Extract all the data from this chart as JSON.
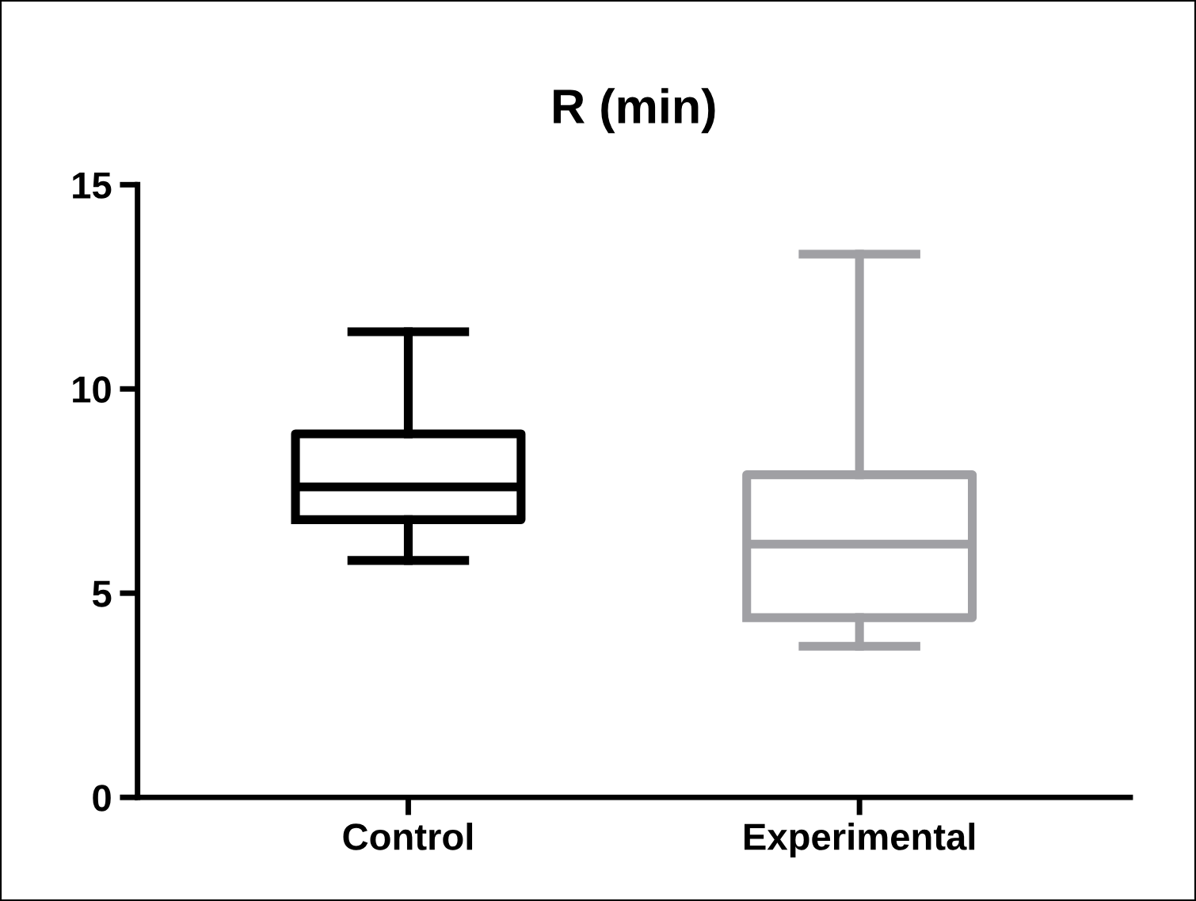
{
  "chart_data": {
    "type": "box",
    "title": "R (min)",
    "categories": [
      "Control",
      "Experimental"
    ],
    "boxes": [
      {
        "low": 5.8,
        "q1": 6.8,
        "median": 7.6,
        "q3": 8.9,
        "high": 11.4
      },
      {
        "low": 3.7,
        "q1": 4.4,
        "median": 6.2,
        "q3": 7.9,
        "high": 13.3
      }
    ],
    "colors": [
      "#000000",
      "#a0a0a4"
    ],
    "ylim": [
      0,
      15
    ],
    "yticks": [
      0,
      5,
      10,
      15
    ],
    "grid": false,
    "legend": false
  }
}
